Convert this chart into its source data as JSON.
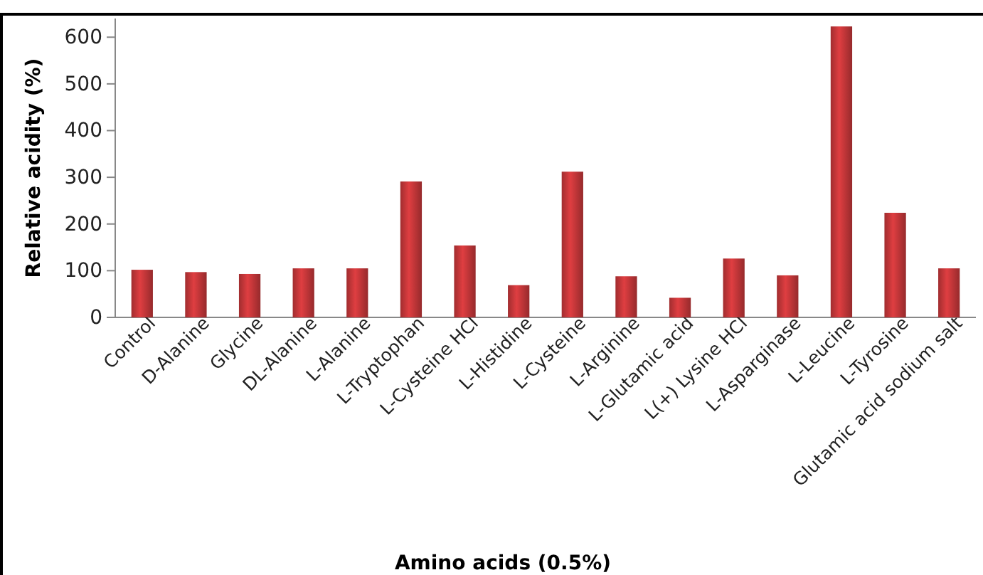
{
  "chart_data": {
    "type": "bar",
    "xlabel": "Amino acids (0.5%)",
    "ylabel": "Relative acidity (%)",
    "categories": [
      "Control",
      "D-Alanine",
      "Glycine",
      "DL-Alanine",
      "L-Alanine",
      "L-Tryptophan",
      "L-Cysteine HCl",
      "L-Histidine",
      "L-Cysteine",
      "L-Arginine",
      "L-Glutamic acid",
      "L(+) Lysine HCl",
      "L-Asparginase",
      "L-Leucine",
      "L-Tyrosine",
      "Glutamic acid sodium salt"
    ],
    "values": [
      102,
      97,
      93,
      105,
      105,
      291,
      154,
      69,
      312,
      88,
      42,
      126,
      90,
      623,
      224,
      105
    ],
    "color": "#c8383a",
    "ylim": [
      0,
      640
    ],
    "yticks": [
      0,
      100,
      200,
      300,
      400,
      500,
      600
    ],
    "grid": false
  }
}
